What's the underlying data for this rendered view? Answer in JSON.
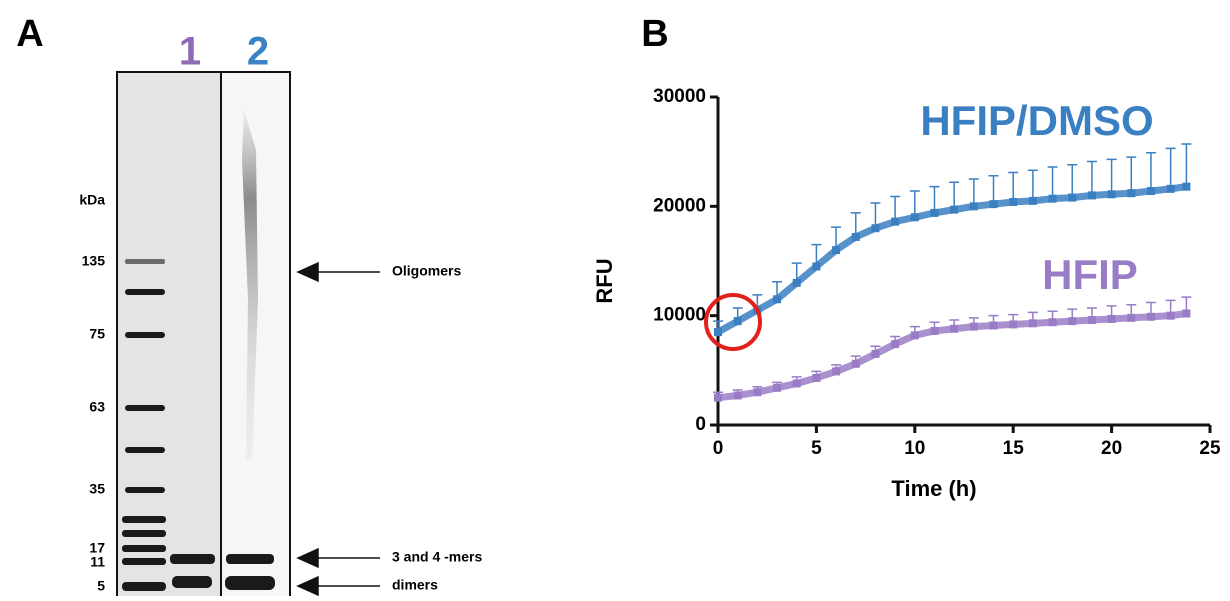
{
  "panel_a": {
    "label": "A",
    "lanes": [
      "1",
      "2"
    ],
    "unit_label": "kDa",
    "markers": [
      "135",
      "75",
      "63",
      "35",
      "17",
      "11",
      "5"
    ],
    "annotations": [
      "Oligomers",
      "3 and 4 -mers",
      "dimers"
    ]
  },
  "chart_data": {
    "type": "line",
    "panel_label": "B",
    "x_label": "Time (h)",
    "y_label": "RFU",
    "xlim": [
      0,
      25
    ],
    "xticks": [
      0,
      5,
      10,
      15,
      20,
      25
    ],
    "ylim": [
      0,
      30000
    ],
    "yticks": [
      0,
      10000,
      20000,
      30000
    ],
    "x": [
      0,
      1,
      2,
      3,
      4,
      5,
      6,
      7,
      8,
      9,
      10,
      11,
      12,
      13,
      14,
      15,
      16,
      17,
      18,
      19,
      20,
      21,
      22,
      23,
      23.8
    ],
    "series": [
      {
        "name": "HFIP/DMSO",
        "color": "#3a7fc1",
        "values": [
          8500,
          9500,
          10500,
          11500,
          13000,
          14500,
          16000,
          17200,
          18000,
          18600,
          19000,
          19400,
          19700,
          20000,
          20200,
          20400,
          20500,
          20700,
          20800,
          21000,
          21100,
          21200,
          21400,
          21600,
          21800
        ],
        "errors": [
          1000,
          1200,
          1400,
          1600,
          1800,
          2000,
          2100,
          2200,
          2300,
          2300,
          2400,
          2400,
          2500,
          2500,
          2600,
          2700,
          2800,
          2900,
          3000,
          3100,
          3200,
          3300,
          3500,
          3700,
          3900
        ]
      },
      {
        "name": "HFIP",
        "color": "#9a7cc6",
        "values": [
          2500,
          2700,
          3000,
          3400,
          3800,
          4300,
          4900,
          5600,
          6500,
          7400,
          8200,
          8600,
          8800,
          9000,
          9100,
          9200,
          9300,
          9400,
          9500,
          9600,
          9700,
          9800,
          9900,
          10000,
          10200
        ],
        "errors": [
          500,
          500,
          500,
          500,
          600,
          600,
          600,
          700,
          700,
          700,
          800,
          800,
          800,
          800,
          900,
          900,
          1000,
          1000,
          1100,
          1100,
          1200,
          1200,
          1300,
          1400,
          1500
        ]
      }
    ]
  }
}
